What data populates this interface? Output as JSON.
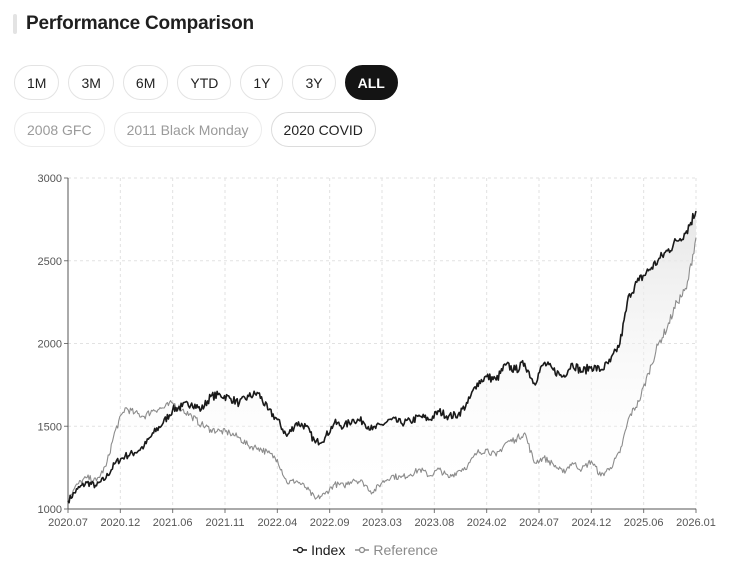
{
  "header": {
    "title": "Performance Comparison"
  },
  "range_buttons": [
    {
      "label": "1M",
      "active": false
    },
    {
      "label": "3M",
      "active": false
    },
    {
      "label": "6M",
      "active": false
    },
    {
      "label": "YTD",
      "active": false
    },
    {
      "label": "1Y",
      "active": false
    },
    {
      "label": "3Y",
      "active": false
    },
    {
      "label": "ALL",
      "active": true
    }
  ],
  "event_buttons": [
    {
      "label": "2008 GFC",
      "selected": false
    },
    {
      "label": "2011 Black Monday",
      "selected": false
    },
    {
      "label": "2020 COVID",
      "selected": true
    }
  ],
  "legend": {
    "index_label": "Index",
    "reference_label": "Reference"
  },
  "colors": {
    "index": "#1a1a1a",
    "reference": "#8c8c8c",
    "active_button": "#141414"
  },
  "chart_data": {
    "type": "line",
    "ylim": [
      1000,
      3000
    ],
    "yticks": [
      1000,
      1500,
      2000,
      2500,
      3000
    ],
    "xlim": [
      "2020-07",
      "2026-01"
    ],
    "xticks": [
      "2020.07",
      "2020.12",
      "2021.06",
      "2021.11",
      "2022.04",
      "2022.09",
      "2023.03",
      "2023.08",
      "2024.02",
      "2024.07",
      "2024.12",
      "2025.06",
      "2026.01"
    ],
    "grid": true,
    "legend_position": "bottom-center",
    "series": [
      {
        "name": "Index",
        "points": [
          [
            "2020-07",
            1050
          ],
          [
            "2020-08",
            1120
          ],
          [
            "2020-09",
            1160
          ],
          [
            "2020-10",
            1140
          ],
          [
            "2020-11",
            1190
          ],
          [
            "2020-12",
            1280
          ],
          [
            "2021-01",
            1320
          ],
          [
            "2021-02",
            1340
          ],
          [
            "2021-03",
            1380
          ],
          [
            "2021-04",
            1460
          ],
          [
            "2021-05",
            1520
          ],
          [
            "2021-06",
            1600
          ],
          [
            "2021-07",
            1620
          ],
          [
            "2021-08",
            1640
          ],
          [
            "2021-09",
            1600
          ],
          [
            "2021-10",
            1680
          ],
          [
            "2021-11",
            1690
          ],
          [
            "2021-12",
            1670
          ],
          [
            "2022-01",
            1640
          ],
          [
            "2022-02",
            1680
          ],
          [
            "2022-03",
            1700
          ],
          [
            "2022-04",
            1600
          ],
          [
            "2022-05",
            1540
          ],
          [
            "2022-06",
            1440
          ],
          [
            "2022-07",
            1520
          ],
          [
            "2022-08",
            1500
          ],
          [
            "2022-09",
            1400
          ],
          [
            "2022-10",
            1430
          ],
          [
            "2022-11",
            1520
          ],
          [
            "2022-12",
            1500
          ],
          [
            "2023-01",
            1540
          ],
          [
            "2023-02",
            1530
          ],
          [
            "2023-03",
            1480
          ],
          [
            "2023-04",
            1510
          ],
          [
            "2023-05",
            1540
          ],
          [
            "2023-06",
            1520
          ],
          [
            "2023-07",
            1530
          ],
          [
            "2023-08",
            1560
          ],
          [
            "2023-09",
            1540
          ],
          [
            "2023-10",
            1590
          ],
          [
            "2023-11",
            1560
          ],
          [
            "2023-12",
            1570
          ],
          [
            "2024-01",
            1640
          ],
          [
            "2024-02",
            1760
          ],
          [
            "2024-03",
            1800
          ],
          [
            "2024-04",
            1780
          ],
          [
            "2024-05",
            1870
          ],
          [
            "2024-06",
            1840
          ],
          [
            "2024-07",
            1880
          ],
          [
            "2024-08",
            1760
          ],
          [
            "2024-09",
            1880
          ],
          [
            "2024-10",
            1840
          ],
          [
            "2024-11",
            1800
          ],
          [
            "2024-12",
            1880
          ],
          [
            "2025-01",
            1830
          ],
          [
            "2025-02",
            1860
          ],
          [
            "2025-03",
            1840
          ],
          [
            "2025-04",
            1890
          ],
          [
            "2025-05",
            2000
          ],
          [
            "2025-06",
            2300
          ],
          [
            "2025-07",
            2380
          ],
          [
            "2025-08",
            2440
          ],
          [
            "2025-09",
            2500
          ],
          [
            "2025-10",
            2560
          ],
          [
            "2025-11",
            2620
          ],
          [
            "2025-12",
            2680
          ],
          [
            "2026-01",
            2800
          ]
        ]
      },
      {
        "name": "Reference",
        "points": [
          [
            "2020-07",
            1060
          ],
          [
            "2020-08",
            1150
          ],
          [
            "2020-09",
            1190
          ],
          [
            "2020-10",
            1170
          ],
          [
            "2020-11",
            1260
          ],
          [
            "2020-12",
            1480
          ],
          [
            "2021-01",
            1610
          ],
          [
            "2021-02",
            1580
          ],
          [
            "2021-03",
            1560
          ],
          [
            "2021-04",
            1600
          ],
          [
            "2021-05",
            1610
          ],
          [
            "2021-06",
            1640
          ],
          [
            "2021-07",
            1600
          ],
          [
            "2021-08",
            1560
          ],
          [
            "2021-09",
            1510
          ],
          [
            "2021-10",
            1480
          ],
          [
            "2021-11",
            1470
          ],
          [
            "2021-12",
            1460
          ],
          [
            "2022-01",
            1430
          ],
          [
            "2022-02",
            1380
          ],
          [
            "2022-03",
            1370
          ],
          [
            "2022-04",
            1340
          ],
          [
            "2022-05",
            1300
          ],
          [
            "2022-06",
            1160
          ],
          [
            "2022-07",
            1170
          ],
          [
            "2022-08",
            1130
          ],
          [
            "2022-09",
            1060
          ],
          [
            "2022-10",
            1090
          ],
          [
            "2022-11",
            1150
          ],
          [
            "2022-12",
            1140
          ],
          [
            "2023-01",
            1180
          ],
          [
            "2023-02",
            1160
          ],
          [
            "2023-03",
            1100
          ],
          [
            "2023-04",
            1160
          ],
          [
            "2023-05",
            1200
          ],
          [
            "2023-06",
            1190
          ],
          [
            "2023-07",
            1210
          ],
          [
            "2023-08",
            1240
          ],
          [
            "2023-09",
            1200
          ],
          [
            "2023-10",
            1240
          ],
          [
            "2023-11",
            1190
          ],
          [
            "2023-12",
            1230
          ],
          [
            "2024-01",
            1260
          ],
          [
            "2024-02",
            1340
          ],
          [
            "2024-03",
            1360
          ],
          [
            "2024-04",
            1320
          ],
          [
            "2024-05",
            1400
          ],
          [
            "2024-06",
            1420
          ],
          [
            "2024-07",
            1460
          ],
          [
            "2024-08",
            1280
          ],
          [
            "2024-09",
            1310
          ],
          [
            "2024-10",
            1270
          ],
          [
            "2024-11",
            1220
          ],
          [
            "2024-12",
            1280
          ],
          [
            "2025-01",
            1240
          ],
          [
            "2025-02",
            1290
          ],
          [
            "2025-03",
            1200
          ],
          [
            "2025-04",
            1250
          ],
          [
            "2025-05",
            1340
          ],
          [
            "2025-06",
            1560
          ],
          [
            "2025-07",
            1650
          ],
          [
            "2025-08",
            1820
          ],
          [
            "2025-09",
            1990
          ],
          [
            "2025-10",
            2100
          ],
          [
            "2025-11",
            2250
          ],
          [
            "2025-12",
            2330
          ],
          [
            "2026-01",
            2640
          ]
        ]
      }
    ]
  }
}
